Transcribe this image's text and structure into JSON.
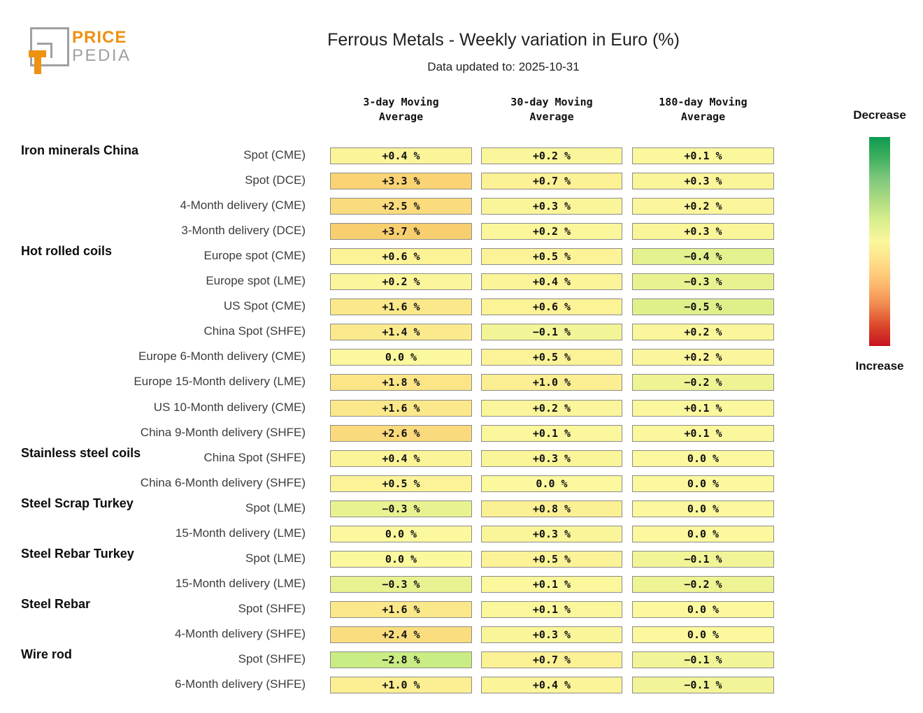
{
  "logo": {
    "price": "PRICE",
    "pedia": "PEDIA"
  },
  "header": {
    "title": "Ferrous Metals - Weekly variation in Euro (%)",
    "subtitle": "Data updated to: 2025-10-31"
  },
  "columns": [
    {
      "line1": "3-day Moving",
      "line2": "Average"
    },
    {
      "line1": "30-day Moving",
      "line2": "Average"
    },
    {
      "line1": "180-day Moving",
      "line2": "Average"
    }
  ],
  "legend": {
    "top_label": "Decrease",
    "bottom_label": "Increase"
  },
  "colors": {
    "brand_orange": "#ee9211",
    "logo_gray": "#9fa0a2",
    "cell_border": "#8c8c8c",
    "legend_green_top": "#0d9a51",
    "legend_yellow_mid": "#fbf79d",
    "legend_red_bottom": "#c6131f"
  },
  "chart_data": {
    "type": "heatmap",
    "title": "Ferrous Metals - Weekly variation in Euro (%)",
    "subtitle": "Data updated to: 2025-10-31",
    "columns": [
      "3-day Moving Average",
      "30-day Moving Average",
      "180-day Moving Average"
    ],
    "unit": "%",
    "color_scale": {
      "decrease": "green",
      "neutral": "yellow",
      "increase": "red"
    },
    "rows": [
      {
        "group": "Iron minerals China",
        "label": "Spot (CME)",
        "values": [
          0.4,
          0.2,
          0.1
        ],
        "display": [
          "+0.4 %",
          "+0.2 %",
          "+0.1 %"
        ]
      },
      {
        "group": "",
        "label": "Spot (DCE)",
        "values": [
          3.3,
          0.7,
          0.3
        ],
        "display": [
          "+3.3 %",
          "+0.7 %",
          "+0.3 %"
        ]
      },
      {
        "group": "",
        "label": "4-Month delivery (CME)",
        "values": [
          2.5,
          0.3,
          0.2
        ],
        "display": [
          "+2.5 %",
          "+0.3 %",
          "+0.2 %"
        ]
      },
      {
        "group": "",
        "label": "3-Month delivery (DCE)",
        "values": [
          3.7,
          0.2,
          0.3
        ],
        "display": [
          "+3.7 %",
          "+0.2 %",
          "+0.3 %"
        ]
      },
      {
        "group": "Hot rolled coils",
        "label": "Europe spot (CME)",
        "values": [
          0.6,
          0.5,
          -0.4
        ],
        "display": [
          "+0.6 %",
          "+0.5 %",
          "−0.4 %"
        ]
      },
      {
        "group": "",
        "label": "Europe spot (LME)",
        "values": [
          0.2,
          0.4,
          -0.3
        ],
        "display": [
          "+0.2 %",
          "+0.4 %",
          "−0.3 %"
        ]
      },
      {
        "group": "",
        "label": "US Spot (CME)",
        "values": [
          1.6,
          0.6,
          -0.5
        ],
        "display": [
          "+1.6 %",
          "+0.6 %",
          "−0.5 %"
        ]
      },
      {
        "group": "",
        "label": "China Spot (SHFE)",
        "values": [
          1.4,
          -0.1,
          0.2
        ],
        "display": [
          "+1.4 %",
          "−0.1 %",
          "+0.2 %"
        ]
      },
      {
        "group": "",
        "label": "Europe 6-Month delivery (CME)",
        "values": [
          0.0,
          0.5,
          0.2
        ],
        "display": [
          "0.0 %",
          "+0.5 %",
          "+0.2 %"
        ]
      },
      {
        "group": "",
        "label": "Europe 15-Month delivery (LME)",
        "values": [
          1.8,
          1.0,
          -0.2
        ],
        "display": [
          "+1.8 %",
          "+1.0 %",
          "−0.2 %"
        ]
      },
      {
        "group": "",
        "label": "US 10-Month delivery (CME)",
        "values": [
          1.6,
          0.2,
          0.1
        ],
        "display": [
          "+1.6 %",
          "+0.2 %",
          "+0.1 %"
        ]
      },
      {
        "group": "",
        "label": "China 9-Month delivery (SHFE)",
        "values": [
          2.6,
          0.1,
          0.1
        ],
        "display": [
          "+2.6 %",
          "+0.1 %",
          "+0.1 %"
        ]
      },
      {
        "group": "Stainless steel coils",
        "label": "China Spot (SHFE)",
        "values": [
          0.4,
          0.3,
          0.0
        ],
        "display": [
          "+0.4 %",
          "+0.3 %",
          "0.0 %"
        ]
      },
      {
        "group": "",
        "label": "China 6-Month delivery (SHFE)",
        "values": [
          0.5,
          0.0,
          0.0
        ],
        "display": [
          "+0.5 %",
          "0.0 %",
          "0.0 %"
        ]
      },
      {
        "group": "Steel Scrap Turkey",
        "label": "Spot (LME)",
        "values": [
          -0.3,
          0.8,
          0.0
        ],
        "display": [
          "−0.3 %",
          "+0.8 %",
          "0.0 %"
        ]
      },
      {
        "group": "",
        "label": "15-Month delivery (LME)",
        "values": [
          0.0,
          0.3,
          0.0
        ],
        "display": [
          "0.0 %",
          "+0.3 %",
          "0.0 %"
        ]
      },
      {
        "group": "Steel Rebar Turkey",
        "label": "Spot (LME)",
        "values": [
          0.0,
          0.5,
          -0.1
        ],
        "display": [
          "0.0 %",
          "+0.5 %",
          "−0.1 %"
        ]
      },
      {
        "group": "",
        "label": "15-Month delivery (LME)",
        "values": [
          -0.3,
          0.1,
          -0.2
        ],
        "display": [
          "−0.3 %",
          "+0.1 %",
          "−0.2 %"
        ]
      },
      {
        "group": "Steel Rebar",
        "label": "Spot (SHFE)",
        "values": [
          1.6,
          0.1,
          0.0
        ],
        "display": [
          "+1.6 %",
          "+0.1 %",
          "0.0 %"
        ]
      },
      {
        "group": "",
        "label": "4-Month delivery (SHFE)",
        "values": [
          2.4,
          0.3,
          0.0
        ],
        "display": [
          "+2.4 %",
          "+0.3 %",
          "0.0 %"
        ]
      },
      {
        "group": "Wire rod",
        "label": "Spot (SHFE)",
        "values": [
          -2.8,
          0.7,
          -0.1
        ],
        "display": [
          "−2.8 %",
          "+0.7 %",
          "−0.1 %"
        ]
      },
      {
        "group": "",
        "label": "6-Month delivery (SHFE)",
        "values": [
          1.0,
          0.4,
          -0.1
        ],
        "display": [
          "+1.0 %",
          "+0.4 %",
          "−0.1 %"
        ]
      }
    ]
  }
}
